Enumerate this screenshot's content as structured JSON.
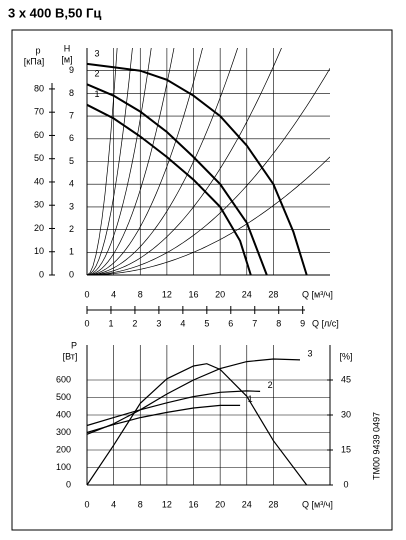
{
  "title": "3 x 400 В,50 Гц",
  "side_note": "TM00 9439 0497",
  "chart_data": [
    {
      "type": "line",
      "y_label": "H",
      "y_unit": "[м]",
      "y2_label": "p",
      "y2_unit": "[кПа]",
      "x_label": "Q [м³/ч]",
      "x2_label": "Q [л/с]",
      "xlim": [
        0,
        36.5
      ],
      "xticks": [
        0,
        4,
        8,
        12,
        16,
        20,
        24,
        28
      ],
      "x2lim": [
        0,
        10.14
      ],
      "x2ticks": [
        0,
        1,
        2,
        3,
        4,
        5,
        6,
        7,
        8,
        9
      ],
      "ylim": [
        0,
        10
      ],
      "yticks": [
        0,
        1,
        2,
        3,
        4,
        5,
        6,
        7,
        8,
        9
      ],
      "y2lim": [
        0,
        97.6
      ],
      "y2ticks": [
        0,
        10,
        20,
        30,
        40,
        50,
        60,
        70,
        80
      ],
      "grid": true,
      "series": [
        {
          "name": "3",
          "color": "#000000",
          "x": [
            0,
            4,
            8,
            12,
            16,
            20,
            24,
            28,
            31,
            33
          ],
          "values": [
            9.3,
            9.15,
            9.0,
            8.6,
            7.9,
            7.0,
            5.7,
            4.0,
            1.9,
            0
          ]
        },
        {
          "name": "2",
          "color": "#000000",
          "x": [
            0,
            4,
            8,
            12,
            16,
            20,
            24,
            27
          ],
          "values": [
            8.4,
            7.9,
            7.2,
            6.3,
            5.2,
            4.0,
            2.3,
            0
          ]
        },
        {
          "name": "1",
          "color": "#000000",
          "x": [
            0,
            4,
            8,
            12,
            16,
            20,
            23,
            24.6
          ],
          "values": [
            7.5,
            6.9,
            6.1,
            5.2,
            4.2,
            3.0,
            1.5,
            0
          ]
        }
      ]
    },
    {
      "type": "line",
      "y_label": "P",
      "y_unit": "[Вт]",
      "y2_label": "[%]",
      "x_label": "Q [м³/ч]",
      "xlim": [
        0,
        36.5
      ],
      "xticks": [
        0,
        4,
        8,
        12,
        16,
        20,
        24,
        28
      ],
      "ylim": [
        0,
        800
      ],
      "yticks": [
        0,
        100,
        200,
        300,
        400,
        500,
        600
      ],
      "y2lim": [
        0,
        60
      ],
      "y2ticks": [
        0,
        15,
        30,
        45
      ],
      "grid": true,
      "series": [
        {
          "name": "3",
          "color": "#000000",
          "x": [
            0,
            4,
            8,
            12,
            16,
            20,
            24,
            28,
            32
          ],
          "values": [
            290,
            350,
            430,
            520,
            600,
            665,
            705,
            720,
            715
          ]
        },
        {
          "name": "2",
          "color": "#000000",
          "x": [
            0,
            4,
            8,
            12,
            16,
            20,
            24,
            26
          ],
          "values": [
            340,
            385,
            430,
            470,
            505,
            530,
            538,
            535
          ]
        },
        {
          "name": "1",
          "color": "#000000",
          "x": [
            0,
            4,
            8,
            12,
            16,
            20,
            23
          ],
          "values": [
            300,
            345,
            385,
            415,
            440,
            455,
            455
          ]
        },
        {
          "color": "#000000",
          "axis": "y2",
          "x": [
            0,
            4,
            8,
            12,
            16,
            18,
            20,
            24,
            28,
            33
          ],
          "values": [
            0,
            17,
            35,
            45.5,
            51,
            52,
            49.5,
            38,
            19,
            0
          ]
        }
      ]
    }
  ]
}
